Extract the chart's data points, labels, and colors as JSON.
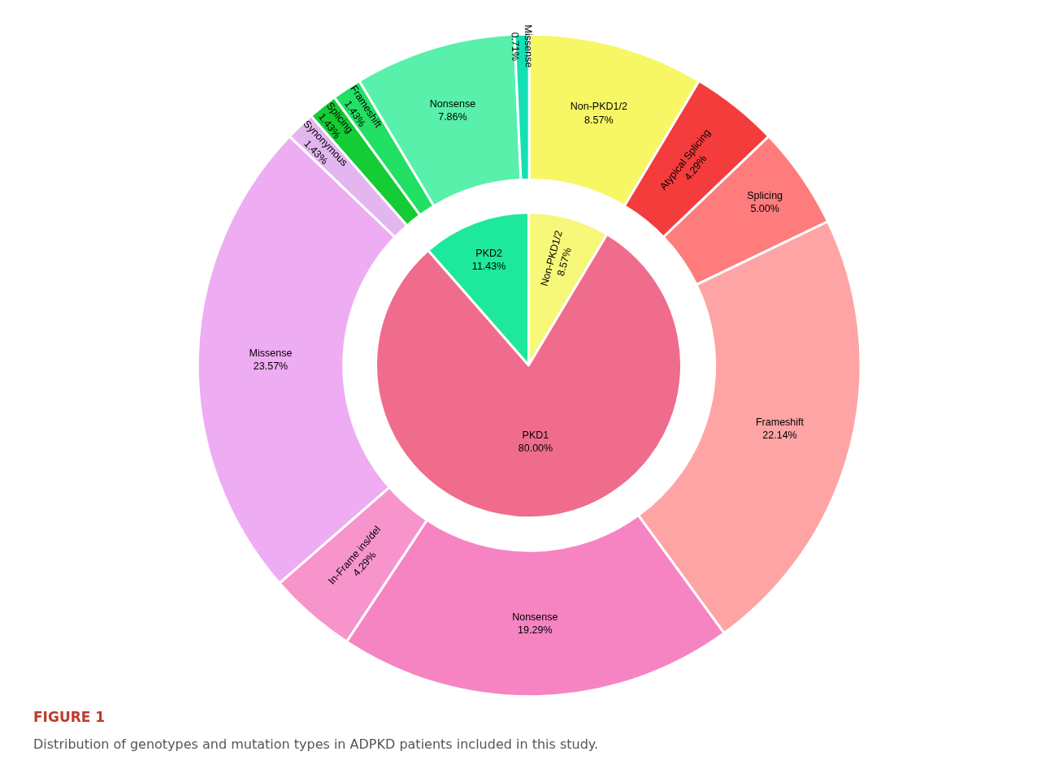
{
  "chart_data": [
    {
      "type": "pie",
      "categories": [
        "Non-PKD1/2",
        "PKD1",
        "PKD2"
      ],
      "values": [
        8.57,
        80.0,
        11.43
      ],
      "value_labels": [
        "8.57%",
        "80.00%",
        "11.43%"
      ],
      "colors": [
        "#f7f77a",
        "#f06c8c",
        "#1ee89c"
      ],
      "annotations": [
        "FIGURE 1",
        "Distribution of genotypes and mutation types in ADPKD patients included in this study."
      ]
    },
    {
      "type": "donut",
      "categories": [
        "Non-PKD1/2",
        "Atypical Splicing",
        "Splicing",
        "Frameshift",
        "Nonsense",
        "In-Frame ins/del",
        "Missense",
        "Synonymous",
        "Splicing",
        "Frameshift",
        "Nonsense",
        "Missense"
      ],
      "values": [
        8.57,
        4.29,
        5.0,
        22.14,
        19.29,
        4.29,
        23.57,
        1.43,
        1.43,
        1.43,
        7.86,
        0.71
      ],
      "value_labels": [
        "8.57%",
        "4.29%",
        "5.00%",
        "22.14%",
        "19.29%",
        "4.29%",
        "23.57%",
        "1.43%",
        "1.43%",
        "1.43%",
        "7.86%",
        "0.71%"
      ],
      "colors": [
        "#f7f766",
        "#f43c3c",
        "#ff7c7c",
        "#ffa4a4",
        "#f684c2",
        "#f794cc",
        "#eeacf2",
        "#e4b6f0",
        "#14cc34",
        "#22e064",
        "#58f0aa",
        "#14e0b4"
      ]
    }
  ]
}
